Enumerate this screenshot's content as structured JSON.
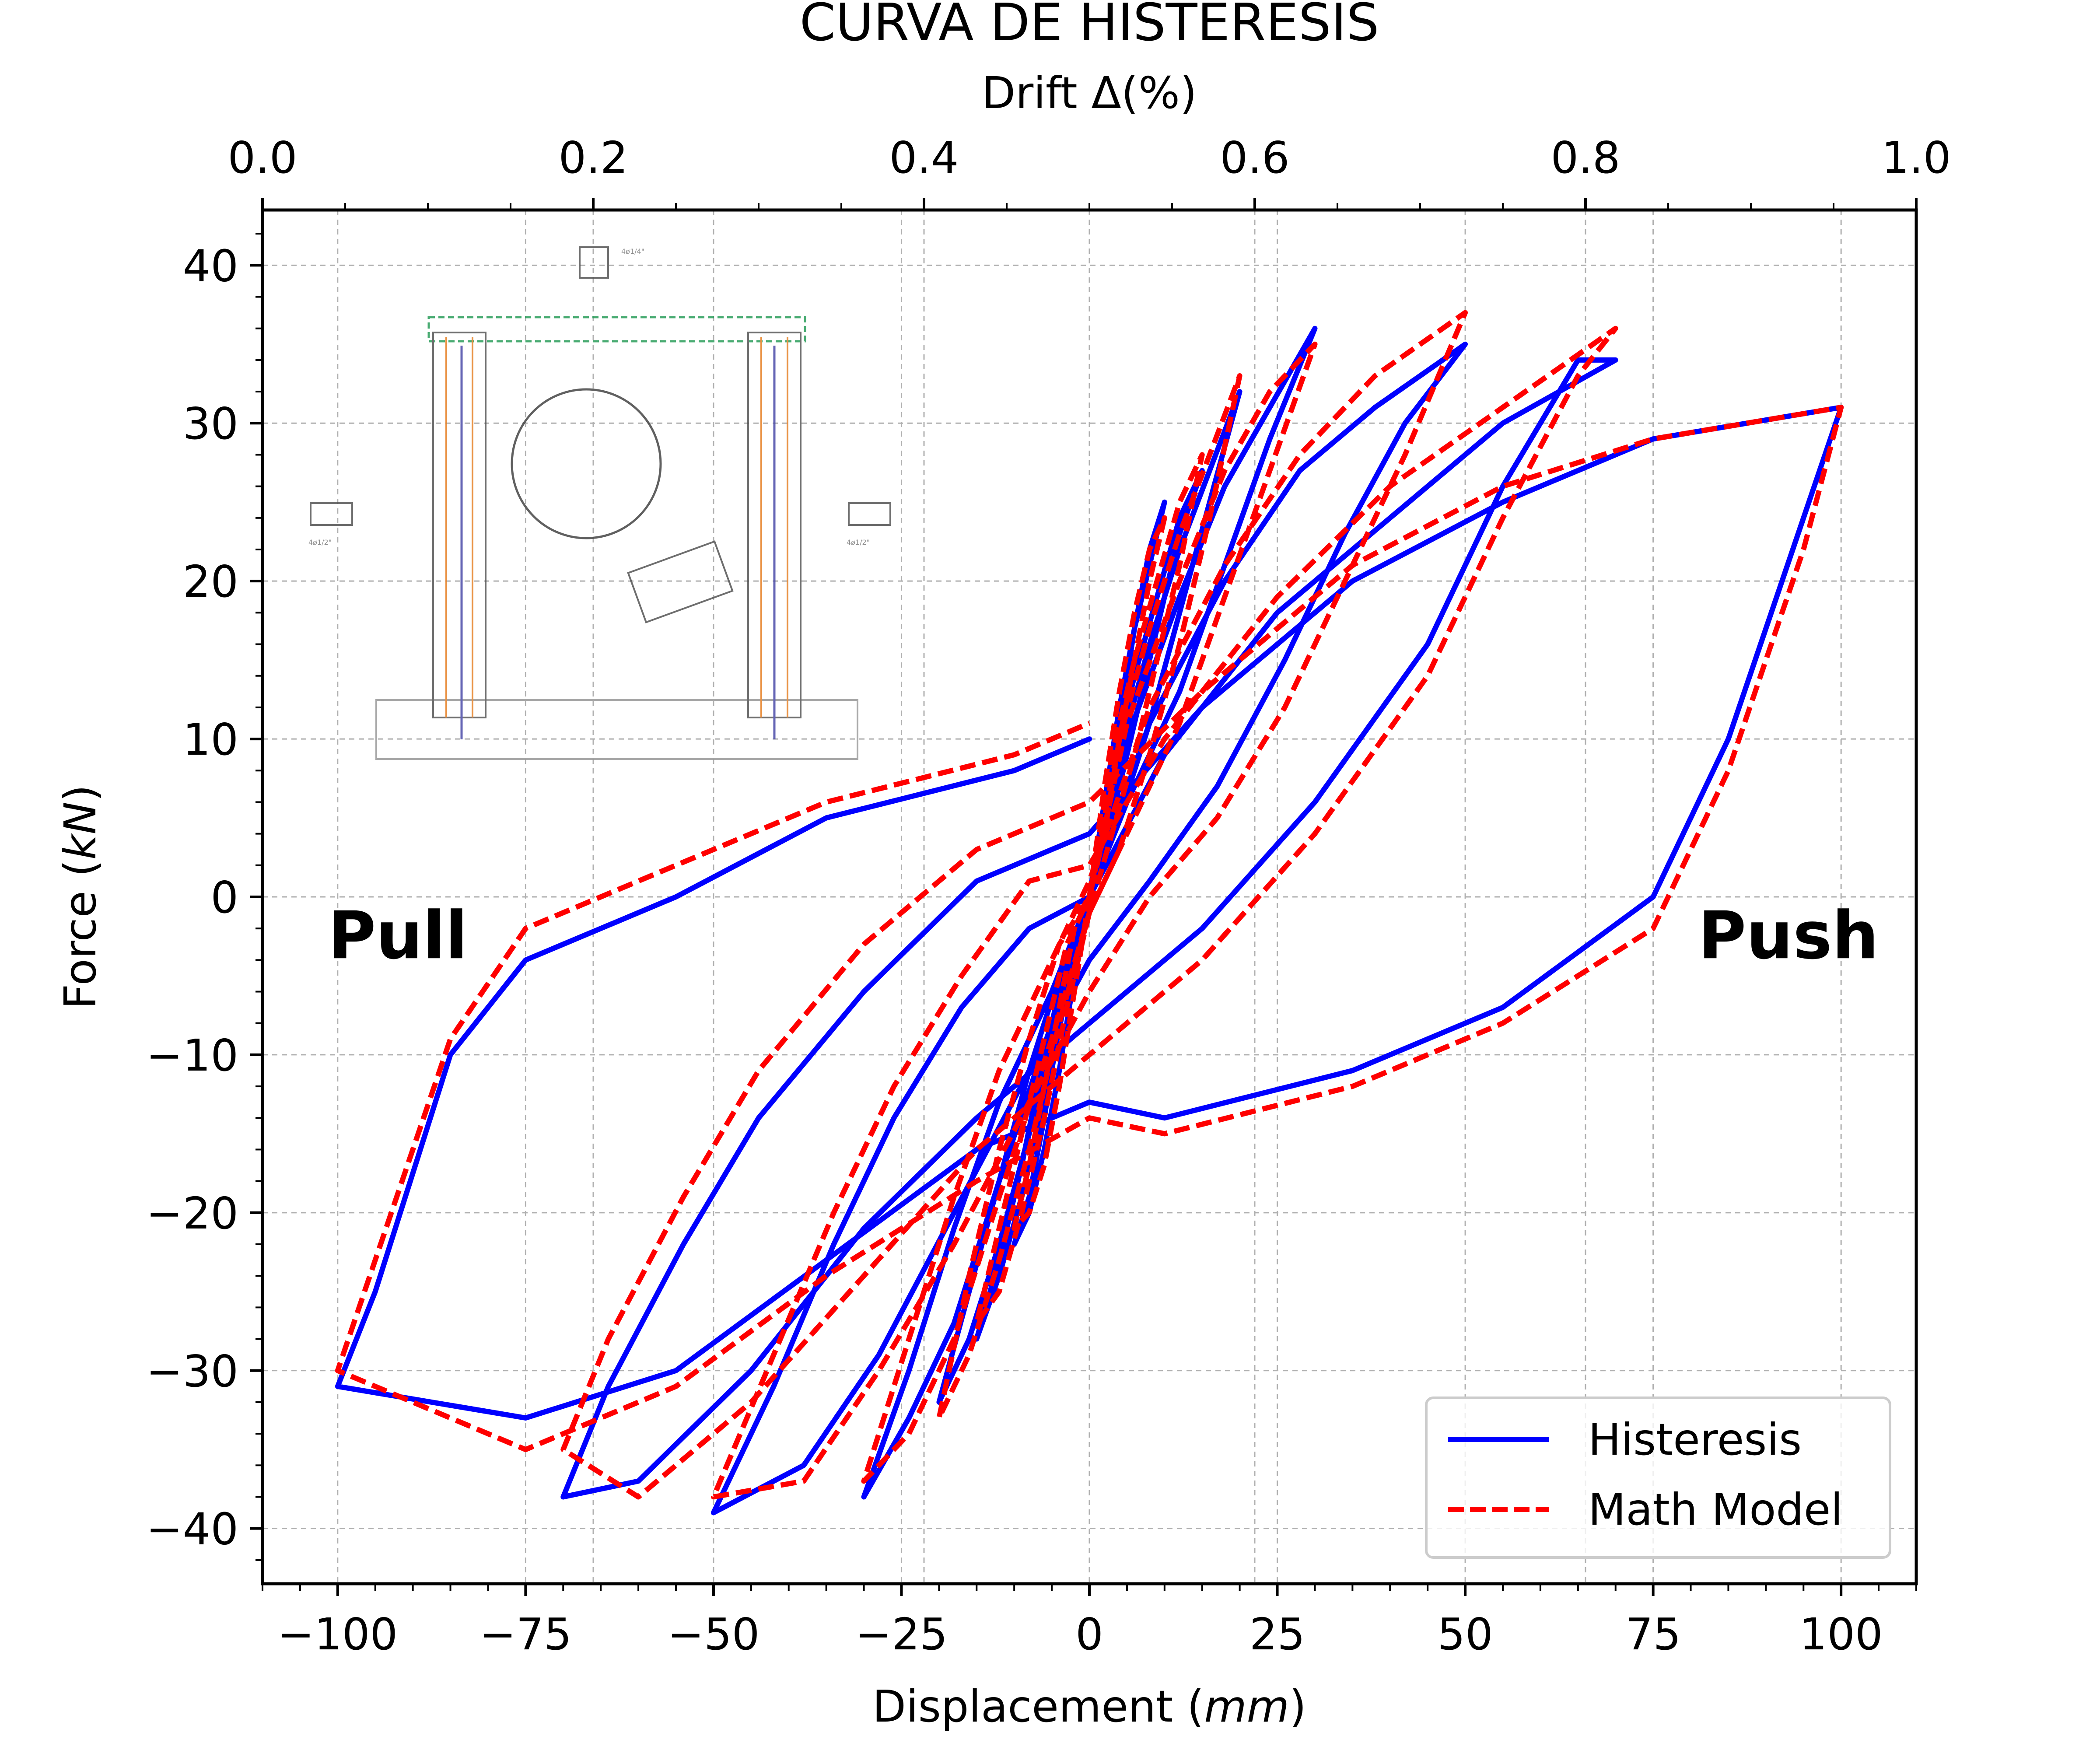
{
  "chart_data": {
    "type": "line",
    "title": "CURVA DE HISTERESIS",
    "xlabel": "Displacement",
    "xlabel_unit": "mm",
    "ylabel": "Force",
    "ylabel_unit": "kN",
    "x2label": "Drift Δ(%)",
    "xlim": [
      -110,
      110
    ],
    "ylim": [
      -43.5,
      43.5
    ],
    "x2lim": [
      0.0,
      1.0
    ],
    "x_ticks": [
      -100,
      -75,
      -50,
      -25,
      0,
      25,
      50,
      75,
      100
    ],
    "x_tick_labels": [
      "−100",
      "−75",
      "−50",
      "−25",
      "0",
      "25",
      "50",
      "75",
      "100"
    ],
    "y_ticks": [
      -40,
      -30,
      -20,
      -10,
      0,
      10,
      20,
      30,
      40
    ],
    "y_tick_labels": [
      "−40",
      "−30",
      "−20",
      "−10",
      "0",
      "10",
      "20",
      "30",
      "40"
    ],
    "x2_ticks": [
      0.0,
      0.2,
      0.4,
      0.6,
      0.8,
      1.0
    ],
    "x2_tick_labels": [
      "0.0",
      "0.2",
      "0.4",
      "0.6",
      "0.8",
      "1.0"
    ],
    "grid": true,
    "legend_position": "lower-right",
    "annotations": [
      {
        "text": "Pull",
        "x": -92,
        "y": -2.5
      },
      {
        "text": "Push",
        "x": 93,
        "y": -2.5
      }
    ],
    "colors": {
      "Histeresis": "#0000ff",
      "Math Model": "#ff0000"
    },
    "series": [
      {
        "name": "Histeresis",
        "style": "solid",
        "x": [
          0,
          2,
          4,
          6,
          8,
          10,
          8,
          6,
          4,
          2,
          0,
          -2,
          -4,
          -6,
          -8,
          -10,
          -8,
          -6,
          -4,
          -2,
          0,
          3,
          6,
          9,
          12,
          15,
          12,
          9,
          6,
          3,
          0,
          -3,
          -6,
          -9,
          -12,
          -15,
          -12,
          -9,
          -6,
          -3,
          0,
          4,
          8,
          12,
          16,
          20,
          16,
          12,
          8,
          4,
          0,
          -4,
          -8,
          -12,
          -16,
          -20,
          -16,
          -12,
          -8,
          -4,
          0,
          5,
          12,
          18,
          24,
          30,
          24,
          18,
          12,
          5,
          0,
          -5,
          -12,
          -18,
          -24,
          -30,
          -24,
          -18,
          -12,
          -5,
          0,
          8,
          18,
          28,
          38,
          50,
          42,
          34,
          26,
          17,
          8,
          0,
          -8,
          -18,
          -28,
          -38,
          -50,
          -42,
          -34,
          -26,
          -17,
          -8,
          0,
          10,
          25,
          40,
          55,
          70,
          65,
          55,
          45,
          30,
          15,
          0,
          -15,
          -30,
          -45,
          -60,
          -70,
          -64,
          -54,
          -44,
          -30,
          -15,
          0,
          15,
          35,
          55,
          75,
          100,
          95,
          85,
          75,
          55,
          35,
          10,
          0,
          -15,
          -35,
          -55,
          -75,
          -100,
          -95,
          -85,
          -75,
          -55,
          -35,
          -10,
          0
        ],
        "y": [
          0,
          6,
          12,
          17,
          21,
          25,
          22,
          17,
          11,
          5,
          0,
          -5,
          -11,
          -16,
          -20,
          -22,
          -19,
          -14,
          -8,
          -3,
          0,
          8,
          14,
          19,
          24,
          27,
          23,
          17,
          11,
          5,
          0,
          -6,
          -13,
          -19,
          -24,
          -28,
          -23,
          -17,
          -10,
          -4,
          0,
          9,
          16,
          22,
          27,
          32,
          25,
          18,
          11,
          5,
          0,
          -7,
          -15,
          -22,
          -28,
          -32,
          -25,
          -18,
          -11,
          -5,
          0,
          10,
          19,
          26,
          31,
          36,
          29,
          21,
          13,
          6,
          0,
          -8,
          -18,
          -27,
          -33,
          -38,
          -30,
          -21,
          -13,
          -6,
          0,
          11,
          20,
          27,
          31,
          35,
          30,
          23,
          15,
          7,
          1,
          -4,
          -11,
          -20,
          -29,
          -36,
          -39,
          -31,
          -22,
          -14,
          -7,
          -2,
          0,
          9,
          18,
          24,
          30,
          34,
          34,
          26,
          16,
          6,
          -2,
          -8,
          -14,
          -21,
          -30,
          -37,
          -38,
          -31,
          -22,
          -14,
          -6,
          1,
          4,
          12,
          20,
          25,
          29,
          31,
          24,
          10,
          0,
          -7,
          -11,
          -14,
          -13,
          -16,
          -23,
          -30,
          -33,
          -31,
          -25,
          -10,
          -4,
          0,
          5,
          8,
          10
        ]
      },
      {
        "name": "Math Model",
        "style": "dashed",
        "x": [
          0,
          2,
          4,
          6,
          8,
          10,
          8,
          6,
          4,
          2,
          0,
          -2,
          -4,
          -6,
          -8,
          -10,
          -8,
          -6,
          -4,
          -2,
          0,
          3,
          6,
          9,
          12,
          15,
          12,
          9,
          6,
          3,
          0,
          -3,
          -6,
          -9,
          -12,
          -15,
          -12,
          -9,
          -6,
          -3,
          0,
          4,
          8,
          12,
          16,
          20,
          16,
          12,
          8,
          4,
          0,
          -4,
          -8,
          -12,
          -16,
          -20,
          -16,
          -12,
          -8,
          -4,
          0,
          5,
          12,
          18,
          24,
          30,
          24,
          18,
          12,
          5,
          0,
          -5,
          -12,
          -18,
          -24,
          -30,
          -24,
          -18,
          -12,
          -5,
          0,
          8,
          18,
          28,
          38,
          50,
          42,
          34,
          26,
          17,
          8,
          0,
          -8,
          -18,
          -28,
          -38,
          -50,
          -42,
          -34,
          -26,
          -17,
          -8,
          0,
          10,
          25,
          40,
          55,
          70,
          65,
          55,
          45,
          30,
          15,
          0,
          -15,
          -30,
          -45,
          -60,
          -70,
          -64,
          -54,
          -44,
          -30,
          -15,
          0,
          15,
          35,
          55,
          75,
          100,
          95,
          85,
          75,
          55,
          35,
          10,
          0,
          -15,
          -35,
          -55,
          -75,
          -100,
          -95,
          -85,
          -75,
          -55,
          -35,
          -10,
          0
        ],
        "y": [
          0,
          7,
          13,
          18,
          22,
          24,
          20,
          15,
          10,
          4,
          0,
          -6,
          -12,
          -17,
          -20,
          -21,
          -17,
          -12,
          -7,
          -2,
          0,
          9,
          15,
          20,
          25,
          28,
          21,
          15,
          9,
          4,
          -1,
          -7,
          -14,
          -20,
          -25,
          -27,
          -21,
          -15,
          -9,
          -3,
          0,
          10,
          17,
          23,
          28,
          33,
          24,
          16,
          9,
          3,
          -1,
          -8,
          -16,
          -23,
          -29,
          -33,
          -24,
          -16,
          -9,
          -3,
          0,
          11,
          20,
          27,
          32,
          35,
          27,
          19,
          11,
          4,
          -1,
          -9,
          -19,
          -28,
          -34,
          -37,
          -28,
          -19,
          -11,
          -4,
          1,
          12,
          21,
          28,
          33,
          37,
          28,
          20,
          12,
          5,
          0,
          -6,
          -13,
          -22,
          -30,
          -37,
          -38,
          -29,
          -20,
          -12,
          -5,
          1,
          2,
          10,
          19,
          26,
          31,
          36,
          33,
          24,
          14,
          4,
          -4,
          -10,
          -16,
          -24,
          -32,
          -38,
          -35,
          -28,
          -19,
          -11,
          -3,
          3,
          6,
          13,
          21,
          26,
          29,
          31,
          22,
          8,
          -2,
          -8,
          -12,
          -15,
          -14,
          -18,
          -24,
          -31,
          -35,
          -30,
          -23,
          -9,
          -2,
          2,
          6,
          9,
          11
        ]
      }
    ]
  }
}
